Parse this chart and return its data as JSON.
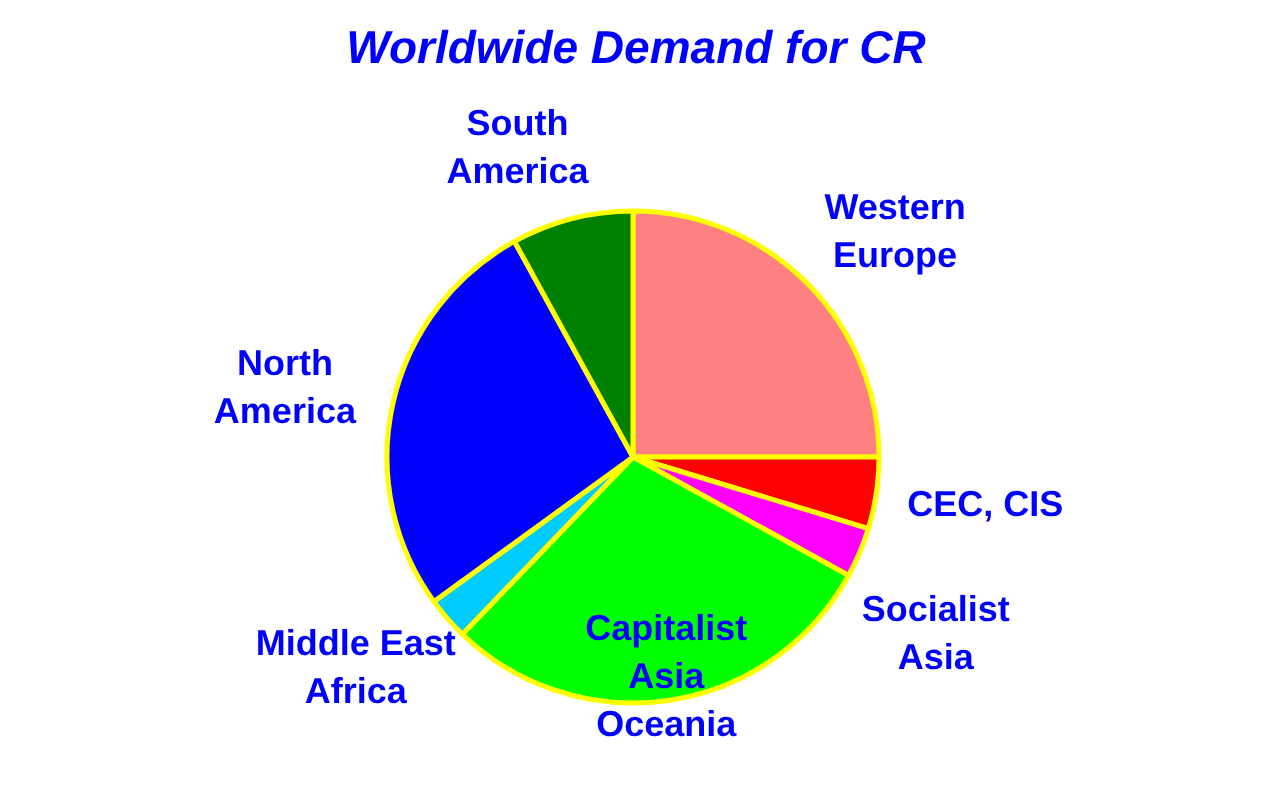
{
  "chart_data": {
    "type": "pie",
    "title": "Worldwide Demand for CR",
    "categories": [
      "Western\nEurope",
      "CEC, CIS",
      "Socialist\nAsia",
      "Capitalist\nAsia\nOceania",
      "Middle East\nAfrica",
      "North\nAmerica",
      "South\nAmerica"
    ],
    "values": [
      25,
      4.7,
      3.3,
      29.2,
      2.8,
      27,
      8
    ],
    "colors": [
      "#ff8080",
      "#ff0000",
      "#ff00ff",
      "#00ff00",
      "#00ccff",
      "#0000ff",
      "#008000"
    ]
  }
}
